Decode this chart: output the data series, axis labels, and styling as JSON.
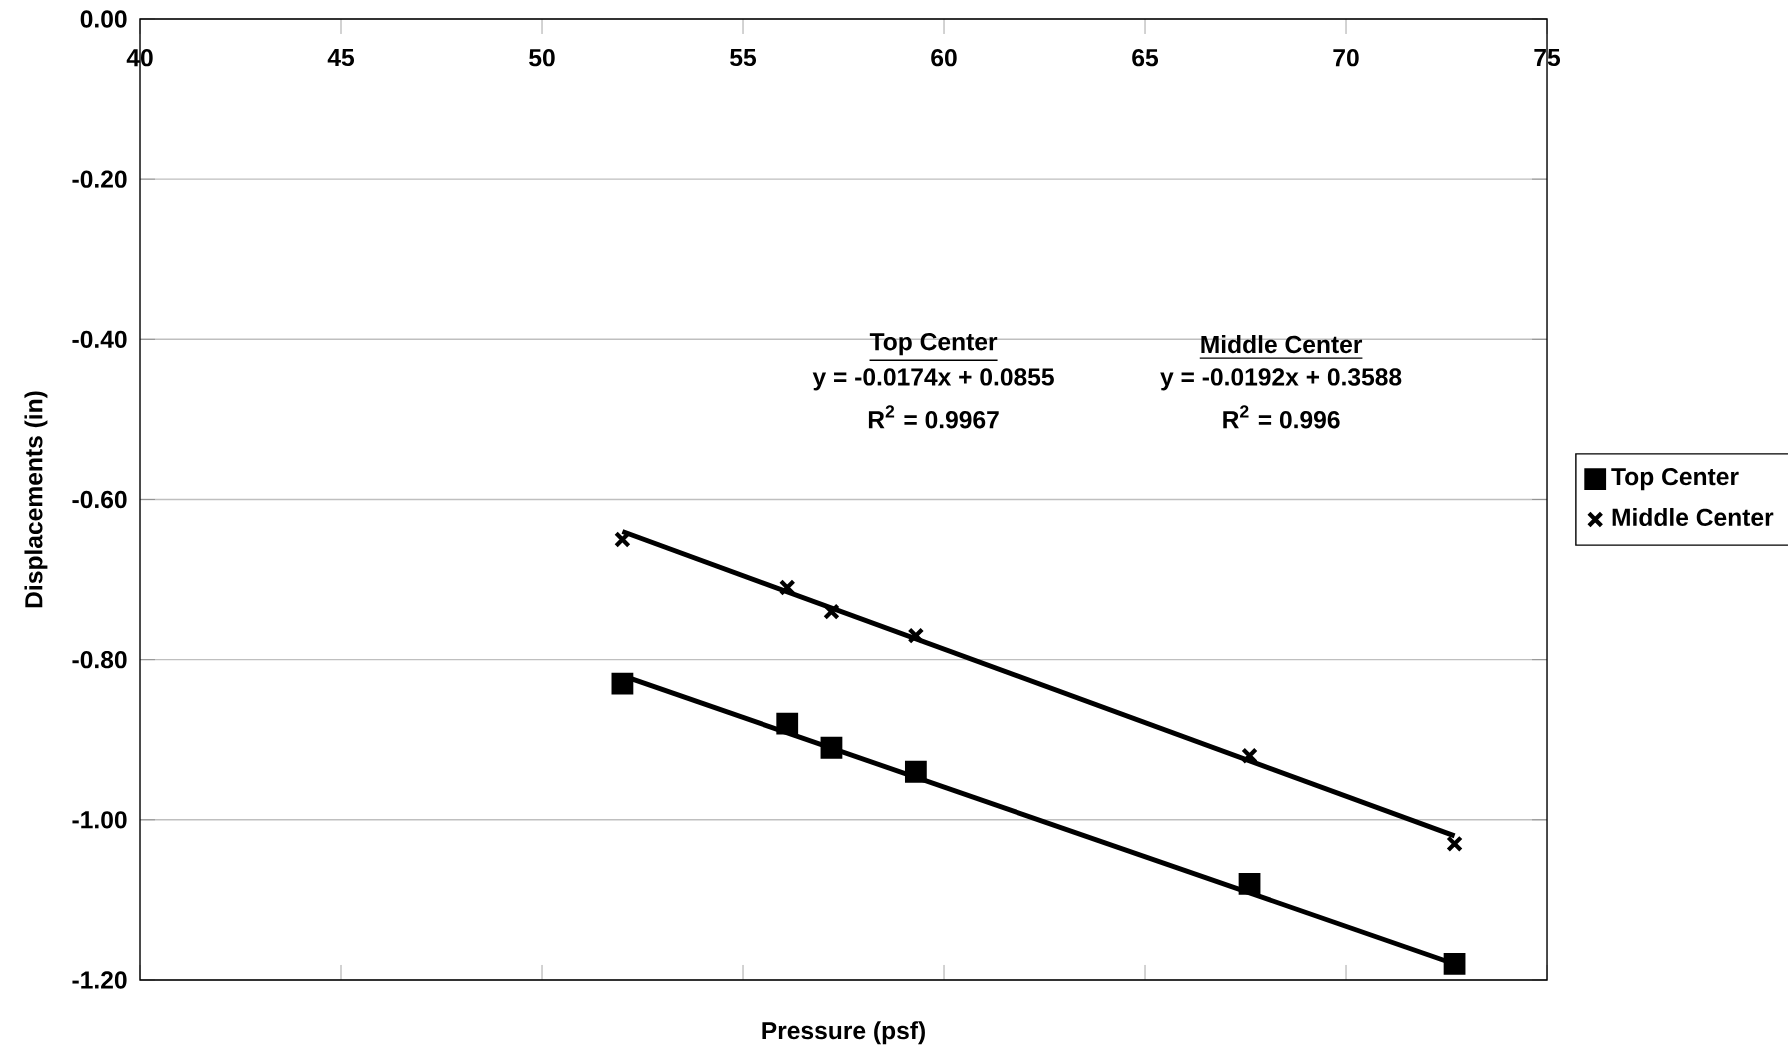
{
  "chart_data": {
    "type": "scatter",
    "xlabel": "Pressure (psf)",
    "ylabel": "Displacements (in)",
    "x": [
      52.0,
      56.1,
      57.2,
      59.3,
      67.6,
      72.7
    ],
    "series": [
      {
        "name": "Top Center",
        "color": "#000000",
        "marker": "square",
        "values": [
          -0.83,
          -0.88,
          -0.91,
          -0.94,
          -1.08,
          -1.18
        ]
      },
      {
        "name": "Middle Center",
        "color": "#000000",
        "marker": "cross",
        "values": [
          -0.65,
          -0.71,
          -0.74,
          -0.77,
          -0.92,
          -1.03
        ]
      },
      {
        "type": "line",
        "color": "#000000",
        "marker": "none",
        "values": [
          -0.82,
          null,
          null,
          null,
          null,
          -1.18
        ]
      },
      {
        "type": "line",
        "color": "#000000",
        "marker": "none",
        "values": [
          -0.64,
          null,
          null,
          null,
          null,
          -1.02
        ]
      }
    ],
    "xlim": [
      40,
      75
    ],
    "xticks": [
      40,
      45,
      50,
      55,
      60,
      65,
      70,
      75
    ],
    "ylim": [
      -1.2,
      0
    ],
    "yticks": [
      {
        "value": -1.2,
        "label": "-1.20"
      },
      {
        "value": -1.0,
        "label": "-1.00"
      },
      {
        "value": -0.8,
        "label": "-0.80"
      },
      {
        "value": -0.6,
        "label": "-0.60"
      },
      {
        "value": -0.4,
        "label": "-0.40"
      },
      {
        "value": -0.2,
        "label": "-0.20"
      },
      {
        "value": 0,
        "label": "0.00"
      }
    ],
    "grid": "y",
    "legend": "right",
    "annotations": [
      "Top Center",
      "y = -0.0174x + 0.0855",
      "R$^{2}$ = 0.9967",
      "Middle Center",
      "y = -0.0192x + 0.3588",
      "R$^{2}$ = 0.996"
    ]
  }
}
